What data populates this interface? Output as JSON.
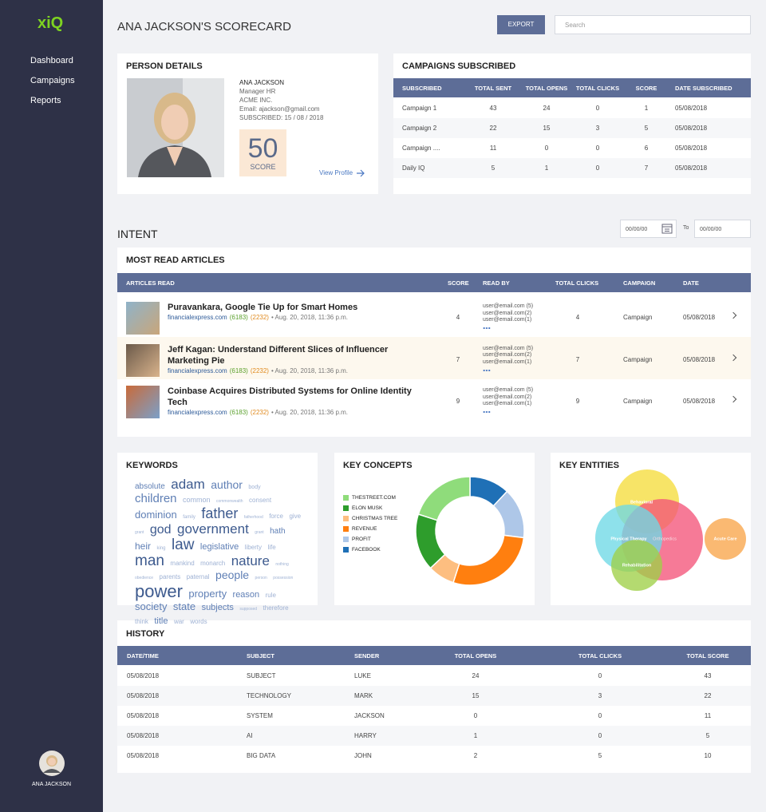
{
  "sidebar": {
    "logo": "xiQ",
    "nav": [
      "Dashboard",
      "Campaigns",
      "Reports"
    ],
    "user": "ANA JACKSON"
  },
  "header": {
    "title": "ANA JACKSON'S SCORECARD",
    "export": "EXPORT",
    "search_placeholder": "Search"
  },
  "person_details": {
    "title": "PERSON DETAILS",
    "name": "ANA JACKSON",
    "role": "Manager HR",
    "company": "ACME INC.",
    "email": "Email: ajackson@gmail.com",
    "subscribed": "SUBSCRIBED: 15 / 08 / 2018",
    "score": 50,
    "score_label": "SCORE",
    "view_profile": "View Profile"
  },
  "campaigns": {
    "title": "CAMPAIGNS SUBSCRIBED",
    "columns": [
      "SUBSCRIBED",
      "TOTAL SENT",
      "TOTAL OPENS",
      "TOTAL CLICKS",
      "SCORE",
      "DATE SUBSCRIBED"
    ],
    "rows": [
      [
        "Campaign 1",
        43,
        24,
        0,
        1,
        "05/08/2018"
      ],
      [
        "Campaign 2",
        22,
        15,
        3,
        5,
        "05/08/2018"
      ],
      [
        "Campaign ....",
        11,
        0,
        0,
        6,
        "05/08/2018"
      ],
      [
        "Daily IQ",
        5,
        1,
        0,
        7,
        "05/08/2018"
      ]
    ]
  },
  "intent": {
    "title": "INTENT",
    "date_from": "00/00/00",
    "to": "To",
    "date_to": "00/00/00"
  },
  "articles": {
    "title": "MOST READ ARTICLES",
    "columns": [
      "ARTICLES READ",
      "SCORE",
      "READ BY",
      "TOTAL CLICKS",
      "CAMPAIGN",
      "DATE"
    ],
    "rows": [
      {
        "title": "Puravankara, Google Tie Up for Smart Homes",
        "source": "financialexpress.com",
        "count_a": "(6183)",
        "count_b": "(2232)",
        "date": "• Aug. 20, 2018, 11:36 p.m.",
        "score": 4,
        "read_by": [
          "user@email.com (5)",
          "user@email.com(2)",
          "user@email.com(1)"
        ],
        "total_clicks": 4,
        "campaign": "Campaign",
        "date_read": "05/08/2018"
      },
      {
        "title": "Jeff Kagan: Understand Different Slices of Influencer Marketing Pie",
        "source": "financialexpress.com",
        "count_a": "(6183)",
        "count_b": "(2232)",
        "date": "• Aug. 20, 2018, 11:36 p.m.",
        "score": 7,
        "read_by": [
          "user@email.com (5)",
          "user@email.com(2)",
          "user@email.com(1)"
        ],
        "total_clicks": 7,
        "campaign": "Campaign",
        "date_read": "05/08/2018"
      },
      {
        "title": "Coinbase Acquires Distributed Systems for Online Identity Tech",
        "source": "financialexpress.com",
        "count_a": "(6183)",
        "count_b": "(2232)",
        "date": "• Aug. 20, 2018, 11:36 p.m.",
        "score": 9,
        "read_by": [
          "user@email.com (5)",
          "user@email.com(2)",
          "user@email.com(1)"
        ],
        "total_clicks": 9,
        "campaign": "Campaign",
        "date_read": "05/08/2018"
      }
    ]
  },
  "keywords": {
    "title": "KEYWORDS",
    "words": [
      "absolute",
      "adam",
      "author",
      "body",
      "children",
      "common",
      "commonwealth",
      "consent",
      "dominion",
      "family",
      "father",
      "fatherhood",
      "force",
      "give",
      "grant",
      "god",
      "government",
      "grant",
      "hath",
      "heir",
      "king",
      "law",
      "legislative",
      "liberty",
      "life",
      "man",
      "mankind",
      "monarch",
      "nature",
      "nothing",
      "obedience",
      "parents",
      "paternal",
      "people",
      "person",
      "possession",
      "power",
      "property",
      "reason",
      "rule",
      "society",
      "state",
      "subjects",
      "supposed",
      "therefore",
      "think",
      "title",
      "war",
      "words"
    ]
  },
  "key_concepts": {
    "title": "KEY CONCEPTS",
    "type": "donut",
    "series": [
      {
        "name": "THESTREET.COM",
        "color": "#8fdc7b",
        "value": 20
      },
      {
        "name": "ELON MUSK",
        "color": "#2e9d2c",
        "value": 17
      },
      {
        "name": "CHRISTMAS TREE",
        "color": "#fdbe80",
        "value": 8
      },
      {
        "name": "REVENUE",
        "color": "#ff7f0f",
        "value": 28
      },
      {
        "name": "PROFIT",
        "color": "#aec7e8",
        "value": 15
      },
      {
        "name": "FACEBOOK",
        "color": "#1f70b6",
        "value": 12
      }
    ]
  },
  "key_entities": {
    "title": "KEY ENTITIES",
    "labels": [
      "Behavioral",
      "Physical Therapy",
      "Orthopedics",
      "Rehabilitation",
      "Acute Care"
    ]
  },
  "history": {
    "title": "HISTORY",
    "columns": [
      "DATE/TIME",
      "SUBJECT",
      "SENDER",
      "TOTAL OPENS",
      "TOTAL CLICKS",
      "TOTAL SCORE"
    ],
    "rows": [
      [
        "05/08/2018",
        "SUBJECT",
        "LUKE",
        24,
        0,
        43
      ],
      [
        "05/08/2018",
        "TECHNOLOGY",
        "MARK",
        15,
        3,
        22
      ],
      [
        "05/08/2018",
        "SYSTEM",
        "JACKSON",
        0,
        0,
        11
      ],
      [
        "05/08/2018",
        "AI",
        "HARRY",
        1,
        0,
        5
      ],
      [
        "05/08/2018",
        "BIG DATA",
        "JOHN",
        2,
        5,
        10
      ]
    ]
  }
}
